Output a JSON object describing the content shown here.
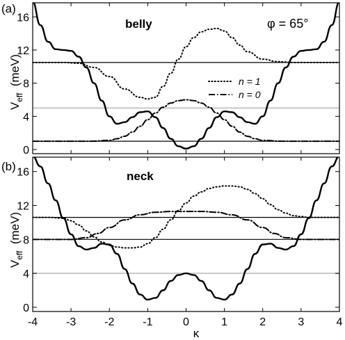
{
  "chart_data": [
    {
      "panel": "(a)",
      "type": "line",
      "annotation": "belly",
      "angle_label": "φ = 65°",
      "xlabel": "",
      "ylabel": "V_eff (meV)",
      "xlim": [
        -4,
        4
      ],
      "ylim": [
        -0.5,
        17.7
      ],
      "xticks": [
        "-4",
        "-3",
        "-2",
        "-1",
        "0",
        "1",
        "2",
        "3",
        "4"
      ],
      "yticks": [
        "0",
        "4",
        "8",
        "12",
        "16"
      ],
      "legend": {
        "placement": "right-center",
        "entries": [
          {
            "label": "n = 1",
            "style": "dotted"
          },
          {
            "label": "n = 0",
            "style": "dashdot"
          }
        ]
      },
      "series": [
        {
          "style": "solid",
          "x": [
            -4.0,
            -3.8,
            -3.6,
            -3.4,
            -3.2,
            -3.0,
            -2.8,
            -2.6,
            -2.4,
            -2.2,
            -2.0,
            -1.8,
            -1.6,
            -1.4,
            -1.2,
            -1.0,
            -0.8,
            -0.6,
            -0.4,
            -0.2,
            0.0,
            0.2,
            0.4,
            0.6,
            0.8,
            1.0,
            1.2,
            1.4,
            1.6,
            1.8,
            2.0,
            2.2,
            2.4,
            2.6,
            2.8,
            3.0,
            3.2,
            3.4,
            3.6,
            3.8,
            4.0
          ],
          "y": [
            17.8,
            15.0,
            13.0,
            12.1,
            12.0,
            11.9,
            11.2,
            9.9,
            8.0,
            5.9,
            4.0,
            3.1,
            3.3,
            3.9,
            4.5,
            4.6,
            3.9,
            2.6,
            1.3,
            0.4,
            0.1,
            0.4,
            1.3,
            2.6,
            3.9,
            4.6,
            4.5,
            3.9,
            3.3,
            3.1,
            4.0,
            5.9,
            8.0,
            9.9,
            11.2,
            11.9,
            12.0,
            12.1,
            13.0,
            15.0,
            17.8
          ]
        },
        {
          "style": "dotted",
          "name": "n = 1",
          "x": [
            -4.0,
            -3.6,
            -3.2,
            -2.8,
            -2.4,
            -2.0,
            -1.6,
            -1.2,
            -1.0,
            -0.8,
            -0.6,
            -0.4,
            -0.2,
            0.0,
            0.2,
            0.4,
            0.6,
            0.8,
            1.0,
            1.2,
            1.4,
            1.6,
            2.0,
            2.4,
            2.8,
            3.2,
            3.6,
            4.0
          ],
          "y": [
            10.5,
            10.5,
            10.5,
            10.4,
            9.9,
            8.8,
            7.3,
            6.3,
            6.1,
            6.3,
            7.6,
            9.2,
            10.9,
            12.4,
            13.5,
            14.2,
            14.5,
            14.6,
            14.3,
            13.5,
            12.6,
            11.8,
            10.9,
            10.6,
            10.5,
            10.5,
            10.5,
            10.5
          ]
        },
        {
          "style": "dashdot",
          "name": "n = 0",
          "x": [
            -4.0,
            -3.5,
            -3.0,
            -2.5,
            -2.0,
            -1.8,
            -1.6,
            -1.4,
            -1.2,
            -1.0,
            -0.8,
            -0.6,
            -0.4,
            -0.2,
            0.0,
            0.2,
            0.4,
            0.6,
            0.8,
            1.0,
            1.2,
            1.4,
            1.6,
            1.8,
            2.0,
            2.5,
            3.0,
            3.5,
            4.0
          ],
          "y": [
            1.0,
            1.0,
            1.0,
            1.0,
            1.1,
            1.3,
            1.6,
            2.1,
            2.8,
            3.6,
            4.4,
            5.1,
            5.6,
            5.9,
            6.0,
            5.9,
            5.6,
            5.1,
            4.4,
            3.6,
            2.8,
            2.1,
            1.6,
            1.3,
            1.1,
            1.0,
            1.0,
            1.0,
            1.0
          ]
        }
      ],
      "hlines": [
        {
          "y": 10.5,
          "color": "#000000"
        },
        {
          "y": 5.0,
          "color": "#c8c8c8"
        },
        {
          "y": 1.0,
          "color": "#000000"
        }
      ]
    },
    {
      "panel": "(b)",
      "type": "line",
      "annotation": "neck",
      "xlabel": "κ",
      "ylabel": "V_eff (meV)",
      "xlim": [
        -4,
        4
      ],
      "ylim": [
        -0.5,
        17.7
      ],
      "xticks": [
        "-4",
        "-3",
        "-2",
        "-1",
        "0",
        "1",
        "2",
        "3",
        "4"
      ],
      "yticks": [
        "0",
        "4",
        "8",
        "12",
        "16"
      ],
      "series": [
        {
          "style": "solid",
          "x": [
            -4.0,
            -3.8,
            -3.6,
            -3.4,
            -3.2,
            -3.0,
            -2.8,
            -2.6,
            -2.4,
            -2.2,
            -2.0,
            -1.8,
            -1.6,
            -1.4,
            -1.2,
            -1.0,
            -0.8,
            -0.6,
            -0.4,
            -0.2,
            0.0,
            0.2,
            0.4,
            0.6,
            0.8,
            1.0,
            1.2,
            1.4,
            1.6,
            1.8,
            2.0,
            2.2,
            2.4,
            2.6,
            2.8,
            3.0,
            3.2,
            3.4,
            3.6,
            3.8,
            4.0
          ],
          "y": [
            17.8,
            16.6,
            14.6,
            12.6,
            10.5,
            8.6,
            7.2,
            6.8,
            7.0,
            7.5,
            7.4,
            6.3,
            4.5,
            2.8,
            1.5,
            0.9,
            1.1,
            2.0,
            3.1,
            3.8,
            4.0,
            3.8,
            3.1,
            2.0,
            1.1,
            0.9,
            1.5,
            2.8,
            4.5,
            6.3,
            7.4,
            7.5,
            7.0,
            6.8,
            7.2,
            8.6,
            10.5,
            12.6,
            14.6,
            16.6,
            17.8
          ]
        },
        {
          "style": "dotted",
          "x": [
            -4.0,
            -3.6,
            -3.2,
            -3.0,
            -2.8,
            -2.6,
            -2.4,
            -2.2,
            -2.0,
            -1.8,
            -1.6,
            -1.4,
            -1.2,
            -1.0,
            -0.8,
            -0.6,
            -0.4,
            -0.2,
            0.0,
            0.2,
            0.4,
            0.6,
            0.8,
            1.0,
            1.2,
            1.4,
            1.6,
            1.8,
            2.0,
            2.2,
            2.4,
            2.6,
            2.8,
            3.0,
            3.2,
            3.6,
            4.0
          ],
          "y": [
            10.6,
            10.6,
            10.5,
            10.2,
            9.7,
            9.0,
            8.3,
            7.7,
            7.3,
            7.1,
            7.0,
            7.0,
            7.1,
            7.5,
            8.2,
            9.2,
            10.3,
            11.4,
            12.3,
            13.1,
            13.6,
            14.0,
            14.2,
            14.3,
            14.3,
            14.2,
            13.9,
            13.4,
            12.8,
            12.1,
            11.5,
            11.1,
            10.8,
            10.7,
            10.6,
            10.6,
            10.6
          ]
        },
        {
          "style": "dashdot",
          "x": [
            -4.0,
            -3.5,
            -3.0,
            -2.6,
            -2.3,
            -2.0,
            -1.6,
            -1.2,
            -0.8,
            -0.4,
            0.0,
            0.4,
            0.8,
            1.2,
            1.6,
            2.0,
            2.3,
            2.6,
            3.0,
            3.5,
            4.0
          ],
          "y": [
            8.0,
            8.0,
            8.0,
            8.2,
            8.7,
            9.4,
            10.3,
            10.9,
            11.2,
            11.3,
            11.3,
            11.3,
            11.2,
            10.9,
            10.3,
            9.4,
            8.7,
            8.2,
            8.0,
            8.0,
            8.0
          ]
        }
      ],
      "hlines": [
        {
          "y": 10.6,
          "color": "#000000"
        },
        {
          "y": 8.0,
          "color": "#000000"
        },
        {
          "y": 4.0,
          "color": "#c8c8c8"
        }
      ]
    }
  ]
}
